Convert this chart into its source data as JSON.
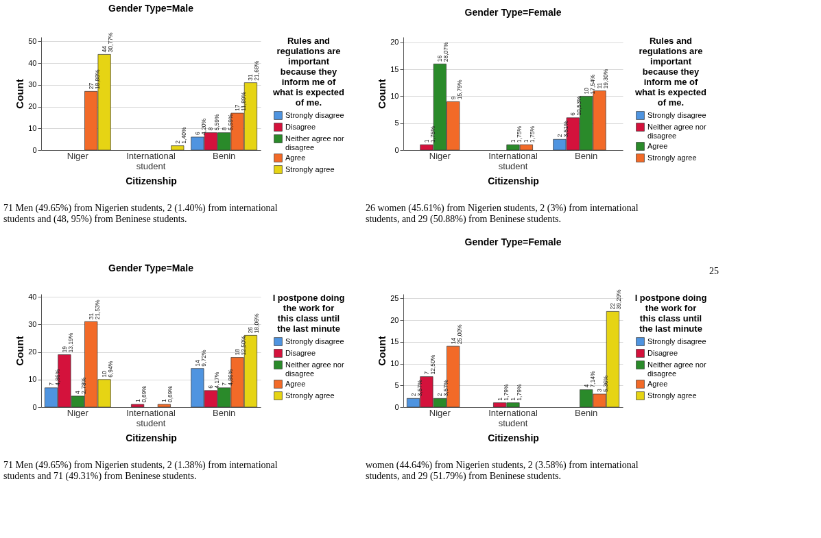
{
  "chart_data": [
    {
      "type": "bar",
      "title": "Gender Type=Male",
      "xlabel": "Citizenship",
      "ylabel": "Count",
      "legend_title": "Rules and regulations are important because they inform me of what is expected of me.",
      "categories": [
        "Niger",
        "International student",
        "Benin"
      ],
      "ylim": [
        0,
        52
      ],
      "yticks": [
        0,
        10,
        20,
        30,
        40,
        50
      ],
      "grid": "y",
      "legend": "right",
      "series": [
        {
          "name": "Strongly disagree",
          "color": "#4f94e0",
          "values": [
            null,
            null,
            6
          ],
          "value_labels": [
            null,
            null,
            "6\n4,20%"
          ]
        },
        {
          "name": "Disagree",
          "color": "#d4123c",
          "values": [
            null,
            null,
            8
          ],
          "value_labels": [
            null,
            null,
            "8\n5,59%"
          ]
        },
        {
          "name": "Neither agree nor disagree",
          "color": "#2a8a2a",
          "values": [
            null,
            null,
            8
          ],
          "value_labels": [
            null,
            null,
            "8\n5,59%"
          ]
        },
        {
          "name": "Agree",
          "color": "#f26a28",
          "values": [
            27,
            null,
            17
          ],
          "value_labels": [
            "27\n18,88%",
            null,
            "17\n11,89%"
          ]
        },
        {
          "name": "Strongly agree",
          "color": "#e6d414",
          "values": [
            44,
            2,
            31
          ],
          "value_labels": [
            "44\n30,77%",
            "2\n1,40%",
            "31\n21,68%"
          ]
        }
      ],
      "annotations": [
        "71 Men (49.65%) from Nigerien students, 2 (1.40%) from international students and (48, 95%) from Beninese students."
      ]
    },
    {
      "type": "bar",
      "title": "Gender Type=Female",
      "xlabel": "Citizenship",
      "ylabel": "Count",
      "legend_title": "Rules and regulations are important because they inform me of what is expected of me.",
      "categories": [
        "Niger",
        "International student",
        "Benin"
      ],
      "ylim": [
        0,
        21
      ],
      "yticks": [
        0,
        5,
        10,
        15,
        20
      ],
      "grid": "y",
      "legend": "right",
      "series": [
        {
          "name": "Strongly disagree",
          "color": "#4f94e0",
          "values": [
            null,
            null,
            2
          ],
          "value_labels": [
            null,
            null,
            "2\n3,51%"
          ]
        },
        {
          "name": "Neither agree nor disagree",
          "color": "#d4123c",
          "values": [
            1,
            null,
            6
          ],
          "value_labels": [
            "1\n1,75%",
            null,
            "6\n10,53%"
          ]
        },
        {
          "name": "Agree",
          "color": "#2a8a2a",
          "values": [
            16,
            1,
            10
          ],
          "value_labels": [
            "16\n28,07%",
            "1\n1,75%",
            "10\n17,54%"
          ]
        },
        {
          "name": "Strongly agree",
          "color": "#f26a28",
          "values": [
            9,
            1,
            11
          ],
          "value_labels": [
            "9\n15,79%",
            "1\n1,75%",
            "11\n19,30%"
          ]
        }
      ],
      "annotations": [
        "26 women (45.61%) from Nigerien students, 2 (3%) from international students, and 29 (50.88%) from Beninese students."
      ]
    },
    {
      "type": "bar",
      "title": "Gender Type=Male",
      "xlabel": "Citizenship",
      "ylabel": "Count",
      "legend_title": "I postpone doing the work for this class until the last minute",
      "categories": [
        "Niger",
        "International student",
        "Benin"
      ],
      "ylim": [
        0,
        41
      ],
      "yticks": [
        0,
        10,
        20,
        30,
        40
      ],
      "grid": "y",
      "legend": "right",
      "series": [
        {
          "name": "Strongly disagree",
          "color": "#4f94e0",
          "values": [
            7,
            null,
            14
          ],
          "value_labels": [
            "7\n4,86%",
            null,
            "14\n9,72%"
          ]
        },
        {
          "name": "Disagree",
          "color": "#d4123c",
          "values": [
            19,
            1,
            6
          ],
          "value_labels": [
            "19\n13,19%",
            "1\n0,69%",
            "6\n4,17%"
          ]
        },
        {
          "name": "Neither agree nor disagree",
          "color": "#2a8a2a",
          "values": [
            4,
            null,
            7
          ],
          "value_labels": [
            "4\n2,78%",
            null,
            "7\n4,86%"
          ]
        },
        {
          "name": "Agree",
          "color": "#f26a28",
          "values": [
            31,
            1,
            18
          ],
          "value_labels": [
            "31\n21,53%",
            "1\n0,69%",
            "18\n12,50%"
          ]
        },
        {
          "name": "Strongly agree",
          "color": "#e6d414",
          "values": [
            10,
            null,
            26
          ],
          "value_labels": [
            "10\n6,94%",
            null,
            "26\n18,06%"
          ]
        }
      ],
      "annotations": [
        "71 Men (49.65%) from Nigerien students, 2 (1.38%) from international students and 71 (49.31%) from Beninese students."
      ]
    },
    {
      "type": "bar",
      "title": "Gender Type=Female",
      "xlabel": "Citizenship",
      "ylabel": "Count",
      "legend_title": "I postpone doing the work for this class until the last minute",
      "categories": [
        "Niger",
        "International student",
        "Benin"
      ],
      "ylim": [
        0,
        26
      ],
      "yticks": [
        0,
        5,
        10,
        15,
        20,
        25
      ],
      "grid": "y",
      "legend": "right",
      "series": [
        {
          "name": "Strongly disagree",
          "color": "#4f94e0",
          "values": [
            2,
            null,
            null
          ],
          "value_labels": [
            "2\n3,57%",
            null,
            null
          ]
        },
        {
          "name": "Disagree",
          "color": "#d4123c",
          "values": [
            7,
            1,
            null
          ],
          "value_labels": [
            "7\n12,50%",
            "1\n1,79%",
            null
          ]
        },
        {
          "name": "Neither agree nor disagree",
          "color": "#2a8a2a",
          "values": [
            2,
            1,
            4
          ],
          "value_labels": [
            "2\n3,57%",
            "1\n1,79%",
            "4\n7,14%"
          ]
        },
        {
          "name": "Agree",
          "color": "#f26a28",
          "values": [
            14,
            null,
            3
          ],
          "value_labels": [
            "14\n25,00%",
            null,
            "3\n5,36%"
          ]
        },
        {
          "name": "Strongly agree",
          "color": "#e6d414",
          "values": [
            null,
            null,
            22
          ],
          "value_labels": [
            null,
            null,
            "22\n39,29%"
          ]
        }
      ],
      "annotations": [
        "women (44.64%) from Nigerien students, 2 (3.58%) from international students, and 29 (51.79%) from Beninese students.",
        "25"
      ]
    }
  ]
}
